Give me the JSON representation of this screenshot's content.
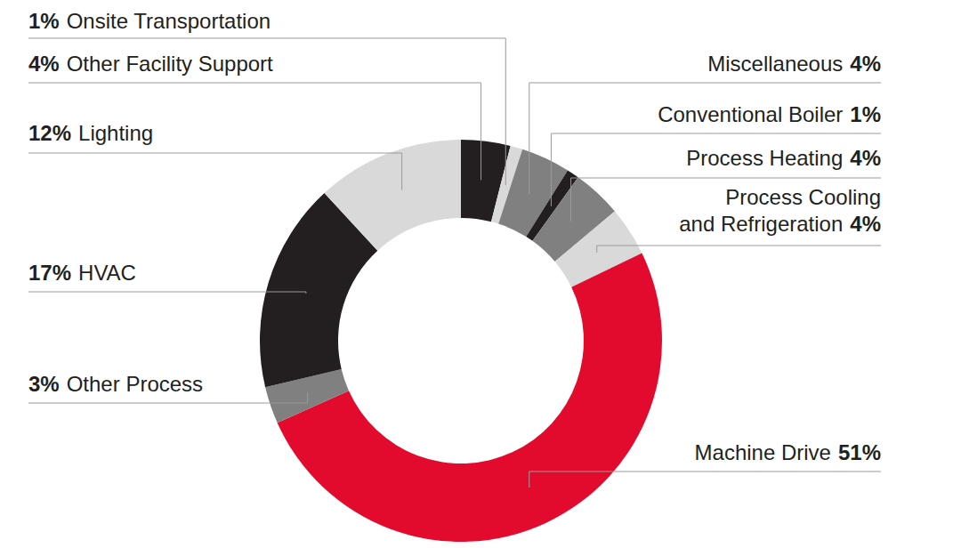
{
  "chart_data": {
    "type": "donut",
    "categories": [
      "Other Facility Support",
      "Onsite Transportation",
      "Miscellaneous",
      "Conventional Boiler",
      "Process Heating",
      "Process Cooling and Refrigeration",
      "Machine Drive",
      "Other Process",
      "HVAC",
      "Lighting"
    ],
    "values": [
      4,
      1,
      4,
      1,
      4,
      4,
      51,
      3,
      17,
      12
    ],
    "value_labels": [
      "4%",
      "1%",
      "4%",
      "1%",
      "4%",
      "4%",
      "51%",
      "3%",
      "17%",
      "12%"
    ],
    "colors": [
      "#231f20",
      "#d9d9d9",
      "#808080",
      "#231f20",
      "#808080",
      "#d9d9d9",
      "#e30b2d",
      "#808080",
      "#231f20",
      "#d9d9d9"
    ]
  }
}
